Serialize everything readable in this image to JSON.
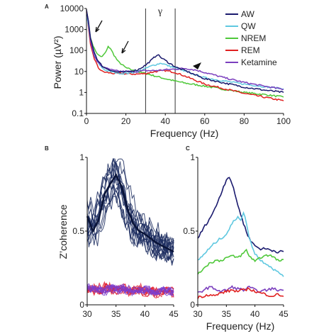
{
  "chart_data": [
    {
      "panel": "A",
      "type": "line",
      "xlabel": "Frequency (Hz)",
      "ylabel": "Power (µV²)",
      "xlim": [
        0,
        100
      ],
      "ylim": [
        0.1,
        10000
      ],
      "yscale": "log",
      "xticks": [
        "0",
        "20",
        "40",
        "60",
        "80",
        "100"
      ],
      "yticks": [
        "0.1",
        "1",
        "10",
        "100",
        "1000",
        "10000"
      ],
      "band_label": "γ",
      "band_range": [
        30,
        45
      ],
      "legend_position": "top-right",
      "series": [
        {
          "name": "AW",
          "color": "#1a1a6e",
          "x": [
            0,
            1,
            2,
            4,
            6,
            8,
            10,
            14,
            18,
            22,
            26,
            30,
            33,
            36,
            38,
            42,
            46,
            50,
            60,
            70,
            80,
            90,
            100
          ],
          "y": [
            8000,
            2500,
            400,
            80,
            30,
            18,
            14,
            10,
            9,
            10,
            12,
            20,
            35,
            65,
            45,
            25,
            15,
            11,
            4.5,
            2.8,
            1.8,
            1.3,
            1.0
          ]
        },
        {
          "name": "QW",
          "color": "#5fc8e0",
          "x": [
            0,
            1,
            2,
            4,
            6,
            8,
            10,
            14,
            18,
            22,
            26,
            30,
            34,
            38,
            42,
            46,
            50,
            60,
            70,
            80,
            90,
            100
          ],
          "y": [
            5000,
            1500,
            300,
            60,
            25,
            15,
            11,
            9,
            8,
            8.5,
            10,
            14,
            20,
            25,
            18,
            14,
            10,
            5,
            3.5,
            2.5,
            1.9,
            1.5
          ]
        },
        {
          "name": "NREM",
          "color": "#4fc83a",
          "x": [
            0,
            1,
            2,
            4,
            6,
            8,
            10,
            11,
            12,
            14,
            16,
            20,
            25,
            30,
            35,
            40,
            45,
            50,
            60,
            70,
            80,
            90,
            100
          ],
          "y": [
            9000,
            2000,
            400,
            120,
            60,
            50,
            90,
            150,
            130,
            60,
            30,
            15,
            10,
            8,
            6,
            4.5,
            3.5,
            2.8,
            2,
            1.4,
            1.0,
            0.8,
            0.6
          ]
        },
        {
          "name": "REM",
          "color": "#e02020",
          "x": [
            0,
            1,
            2,
            4,
            6,
            8,
            10,
            14,
            18,
            22,
            26,
            30,
            35,
            40,
            45,
            50,
            60,
            70,
            80,
            90,
            100
          ],
          "y": [
            7000,
            1200,
            200,
            40,
            15,
            10,
            9,
            8,
            8,
            7.5,
            7.5,
            8,
            10,
            11,
            9,
            6,
            2.5,
            1.5,
            0.9,
            0.6,
            0.4
          ]
        },
        {
          "name": "Ketamine",
          "color": "#7b3fbe",
          "x": [
            0,
            1,
            2,
            4,
            6,
            8,
            10,
            14,
            18,
            22,
            26,
            30,
            35,
            40,
            45,
            50,
            55,
            60,
            70,
            80,
            90,
            100
          ],
          "y": [
            9000,
            2000,
            300,
            50,
            25,
            18,
            14,
            11,
            10,
            10,
            10,
            11,
            11,
            12,
            13,
            14,
            12,
            9,
            5,
            3,
            2,
            1.4
          ]
        }
      ]
    },
    {
      "panel": "B",
      "type": "line",
      "xlabel": "",
      "ylabel": "Z’coherence",
      "xlim": [
        30,
        45
      ],
      "ylim": [
        0,
        1
      ],
      "xticks": [
        "30",
        "35",
        "40",
        "45"
      ],
      "yticks": [
        "0",
        "0.5",
        "1"
      ],
      "groups": [
        {
          "color": "#1a2a5e",
          "trials": 14,
          "mean_x": [
            30,
            31,
            32,
            33,
            34,
            35,
            36,
            37,
            38,
            39,
            40,
            41,
            42,
            43,
            44,
            45
          ],
          "mean_y": [
            0.6,
            0.5,
            0.58,
            0.75,
            0.82,
            0.88,
            0.8,
            0.65,
            0.55,
            0.5,
            0.48,
            0.45,
            0.42,
            0.4,
            0.38,
            0.36
          ]
        },
        {
          "color": "#e02030",
          "trials": 10,
          "mean_x": [
            30,
            31,
            32,
            33,
            34,
            35,
            36,
            37,
            38,
            39,
            40,
            41,
            42,
            43,
            44,
            45
          ],
          "mean_y": [
            0.1,
            0.12,
            0.09,
            0.13,
            0.11,
            0.1,
            0.12,
            0.09,
            0.1,
            0.11,
            0.09,
            0.1,
            0.08,
            0.09,
            0.1,
            0.08
          ]
        },
        {
          "color": "#7a3fd0",
          "trials": 8,
          "mean_x": [
            30,
            31,
            32,
            33,
            34,
            35,
            36,
            37,
            38,
            39,
            40,
            41,
            42,
            43,
            44,
            45
          ],
          "mean_y": [
            0.12,
            0.1,
            0.11,
            0.09,
            0.12,
            0.1,
            0.11,
            0.1,
            0.09,
            0.1,
            0.11,
            0.08,
            0.09,
            0.1,
            0.09,
            0.08
          ]
        }
      ]
    },
    {
      "panel": "C",
      "type": "line",
      "xlabel": "Frequency (Hz)",
      "ylabel": "",
      "xlim": [
        30,
        45
      ],
      "ylim": [
        0,
        1
      ],
      "xticks": [
        "30",
        "35",
        "40",
        "45"
      ],
      "yticks": [
        "0",
        "0.5",
        "1"
      ],
      "series": [
        {
          "color": "#1a1a6e",
          "x": [
            30,
            31,
            32,
            33,
            34,
            35,
            35.5,
            36,
            37,
            38,
            39,
            40,
            41,
            42,
            43,
            44,
            45
          ],
          "y": [
            0.45,
            0.52,
            0.58,
            0.65,
            0.75,
            0.85,
            0.87,
            0.82,
            0.68,
            0.55,
            0.45,
            0.4,
            0.38,
            0.38,
            0.37,
            0.36,
            0.36
          ]
        },
        {
          "color": "#5fc8e0",
          "x": [
            30,
            31,
            32,
            33,
            34,
            35,
            36,
            37,
            37.5,
            38,
            38.5,
            39,
            40,
            41,
            42,
            43,
            44,
            45
          ],
          "y": [
            0.3,
            0.34,
            0.38,
            0.42,
            0.45,
            0.48,
            0.55,
            0.6,
            0.58,
            0.62,
            0.56,
            0.45,
            0.35,
            0.3,
            0.28,
            0.25,
            0.22,
            0.2
          ]
        },
        {
          "color": "#4fc83a",
          "x": [
            30,
            31,
            32,
            33,
            34,
            35,
            36,
            37,
            38,
            38.5,
            39,
            40,
            41,
            42,
            43,
            44,
            45
          ],
          "y": [
            0.2,
            0.25,
            0.28,
            0.3,
            0.3,
            0.32,
            0.33,
            0.32,
            0.35,
            0.37,
            0.33,
            0.3,
            0.32,
            0.34,
            0.33,
            0.3,
            0.3
          ]
        },
        {
          "color": "#7b3fbe",
          "x": [
            30,
            31,
            32,
            33,
            34,
            35,
            36,
            37,
            38,
            39,
            40,
            41,
            42,
            43,
            44,
            45
          ],
          "y": [
            0.08,
            0.1,
            0.12,
            0.11,
            0.09,
            0.1,
            0.12,
            0.11,
            0.1,
            0.12,
            0.1,
            0.09,
            0.1,
            0.11,
            0.1,
            0.1
          ]
        },
        {
          "color": "#e02020",
          "x": [
            30,
            31,
            32,
            33,
            34,
            35,
            36,
            37,
            38,
            39,
            40,
            41,
            42,
            43,
            44,
            45
          ],
          "y": [
            0.05,
            0.06,
            0.07,
            0.06,
            0.08,
            0.09,
            0.1,
            0.09,
            0.1,
            0.11,
            0.09,
            0.08,
            0.07,
            0.06,
            0.07,
            0.06
          ]
        }
      ]
    }
  ]
}
